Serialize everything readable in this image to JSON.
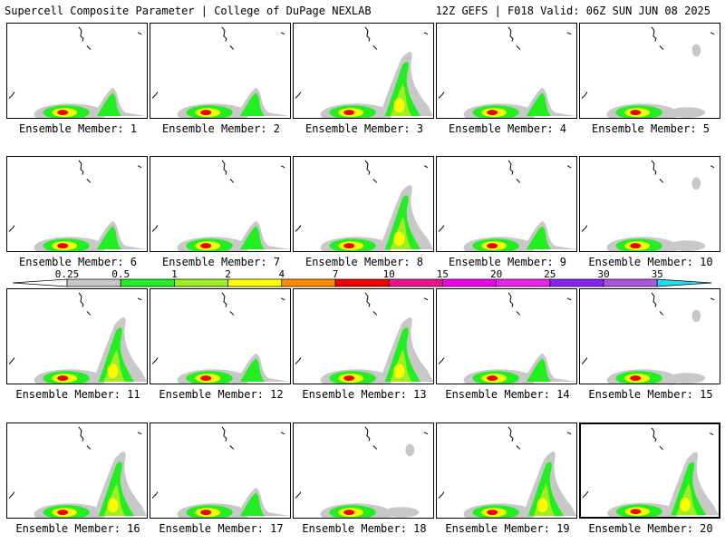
{
  "header": {
    "title": "Supercell Composite Parameter | College of DuPage NEXLAB",
    "run_info": "12Z GEFS | F018 Valid: 06Z SUN JUN 08 2025"
  },
  "member_label_prefix": "Ensemble Member:",
  "members": [
    {
      "number": "1",
      "selected": false,
      "plume": "south"
    },
    {
      "number": "2",
      "selected": false,
      "plume": "south"
    },
    {
      "number": "3",
      "selected": false,
      "plume": "strong"
    },
    {
      "number": "4",
      "selected": false,
      "plume": "south"
    },
    {
      "number": "5",
      "selected": false,
      "plume": "weak"
    },
    {
      "number": "6",
      "selected": false,
      "plume": "south"
    },
    {
      "number": "7",
      "selected": false,
      "plume": "south"
    },
    {
      "number": "8",
      "selected": false,
      "plume": "strong"
    },
    {
      "number": "9",
      "selected": false,
      "plume": "south"
    },
    {
      "number": "10",
      "selected": false,
      "plume": "weak"
    },
    {
      "number": "11",
      "selected": false,
      "plume": "strong"
    },
    {
      "number": "12",
      "selected": false,
      "plume": "south"
    },
    {
      "number": "13",
      "selected": false,
      "plume": "strong"
    },
    {
      "number": "14",
      "selected": false,
      "plume": "south"
    },
    {
      "number": "15",
      "selected": false,
      "plume": "weak"
    },
    {
      "number": "16",
      "selected": false,
      "plume": "strong"
    },
    {
      "number": "17",
      "selected": false,
      "plume": "south"
    },
    {
      "number": "18",
      "selected": false,
      "plume": "weak"
    },
    {
      "number": "19",
      "selected": false,
      "plume": "strong"
    },
    {
      "number": "20",
      "selected": true,
      "plume": "strong"
    }
  ],
  "legend": {
    "ticks": [
      "0.25",
      "0.5",
      "1",
      "2",
      "4",
      "7",
      "10",
      "15",
      "20",
      "25",
      "30",
      "35"
    ],
    "colors": [
      "#ffffff",
      "#c8c8c8",
      "#22ee22",
      "#a0ee22",
      "#ffff00",
      "#ff8c00",
      "#ee0000",
      "#ee1188",
      "#ee00ee",
      "#ee22ee",
      "#8822ee",
      "#aa55dd",
      "#22ddee"
    ]
  }
}
